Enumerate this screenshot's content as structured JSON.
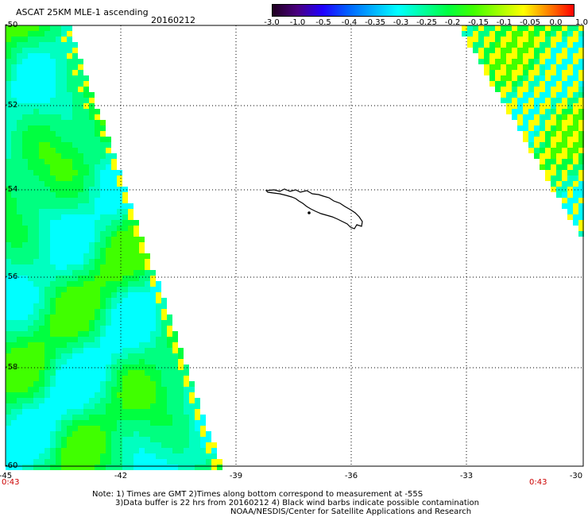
{
  "header": {
    "title": "ASCAT 25KM MLE-1 ascending",
    "date": "20160212"
  },
  "colorbar": {
    "ticks": [
      "-3.0",
      "-1.0",
      "-0.5",
      "-0.4",
      "-0.35",
      "-0.3",
      "-0.25",
      "-0.2",
      "-0.15",
      "-0.1",
      "-0.05",
      "0.0",
      "1.0"
    ],
    "colors": [
      "#200020",
      "#4a0080",
      "#2000ff",
      "#0060ff",
      "#00b0ff",
      "#00ffff",
      "#00ffa0",
      "#00ff40",
      "#40ff00",
      "#a0ff00",
      "#ffff00",
      "#ff8000",
      "#ff0000"
    ]
  },
  "map": {
    "lat_labels": [
      "-50",
      "-52",
      "-54",
      "-56",
      "-58",
      "-60"
    ],
    "lon_labels": [
      "-45",
      "-42",
      "-39",
      "-36",
      "-33",
      "-30"
    ],
    "time_labels": [
      "0:43",
      "0:43"
    ]
  },
  "notes": {
    "line1": "Note: 1) Times are GMT 2)Times along bottom correspond to measurement at -55S",
    "line2": "3)Data buffer is 22 hrs from 20160212 4) Black wind barbs indicate possible contamination",
    "line3": "NOAA/NESDIS/Center for Satellite Applications and Research"
  }
}
